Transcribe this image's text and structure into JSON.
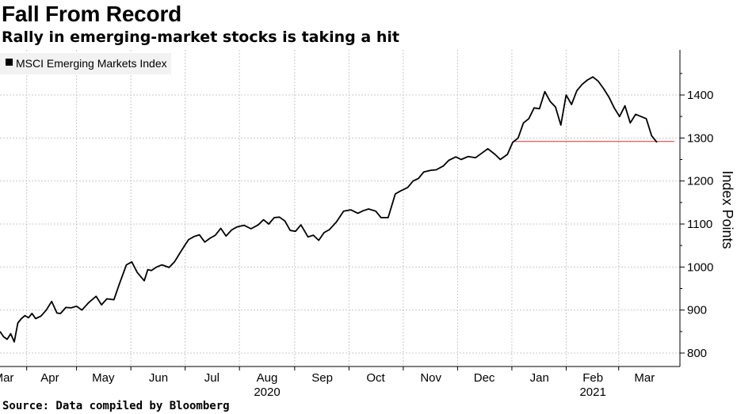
{
  "title": "Fall From Record",
  "subtitle": "Rally in emerging-market stocks is taking a hit",
  "source": "Source: Data compiled by Bloomberg",
  "colors": {
    "line": "#000000",
    "reference_line": "#e8484f",
    "grid": "#c8c8c8",
    "legend_bg": "#f2f2f2"
  },
  "chart_data": {
    "type": "line",
    "title": "Fall From Record",
    "subtitle": "Rally in emerging-market stocks is taking a hit",
    "ylabel": "Index Points",
    "xlabel": "",
    "ylim": [
      775,
      1500
    ],
    "yticks": [
      800,
      900,
      1000,
      1100,
      1200,
      1300,
      1400
    ],
    "yaxis_side": "right",
    "grid": true,
    "legend": {
      "position": "top-left",
      "entries": [
        "MSCI Emerging Markets Index"
      ]
    },
    "x_range": [
      "2020-03-19",
      "2021-03-31"
    ],
    "month_ticks": [
      {
        "label": "Mar",
        "date": "2020-03-21"
      },
      {
        "label": "Apr",
        "date": "2020-04-16"
      },
      {
        "label": "May",
        "date": "2020-05-16"
      },
      {
        "label": "Jun",
        "date": "2020-06-16"
      },
      {
        "label": "Jul",
        "date": "2020-07-16"
      },
      {
        "label": "Aug",
        "date": "2020-08-16"
      },
      {
        "label": "Sep",
        "date": "2020-09-16"
      },
      {
        "label": "Oct",
        "date": "2020-10-16"
      },
      {
        "label": "Nov",
        "date": "2020-11-16"
      },
      {
        "label": "Dec",
        "date": "2020-12-16"
      },
      {
        "label": "Jan",
        "date": "2021-01-16"
      },
      {
        "label": "Feb",
        "date": "2021-02-15"
      },
      {
        "label": "Mar",
        "date": "2021-03-16"
      }
    ],
    "year_labels": [
      {
        "label": "2020",
        "date": "2020-08-16"
      },
      {
        "label": "2021",
        "date": "2021-02-15"
      }
    ],
    "reference_line": {
      "y": 1292,
      "from": "2021-01-01",
      "to": "2021-03-31"
    },
    "series": [
      {
        "name": "MSCI Emerging Markets Index",
        "x": [
          "2020-03-19",
          "2020-03-21",
          "2020-03-23",
          "2020-03-25",
          "2020-03-27",
          "2020-03-29",
          "2020-03-31",
          "2020-04-02",
          "2020-04-04",
          "2020-04-06",
          "2020-04-08",
          "2020-04-11",
          "2020-04-14",
          "2020-04-17",
          "2020-04-20",
          "2020-04-22",
          "2020-04-25",
          "2020-04-28",
          "2020-05-01",
          "2020-05-04",
          "2020-05-08",
          "2020-05-12",
          "2020-05-15",
          "2020-05-18",
          "2020-05-22",
          "2020-05-25",
          "2020-05-29",
          "2020-06-01",
          "2020-06-04",
          "2020-06-08",
          "2020-06-10",
          "2020-06-12",
          "2020-06-15",
          "2020-06-18",
          "2020-06-22",
          "2020-06-25",
          "2020-06-28",
          "2020-07-01",
          "2020-07-03",
          "2020-07-06",
          "2020-07-09",
          "2020-07-12",
          "2020-07-15",
          "2020-07-18",
          "2020-07-21",
          "2020-07-24",
          "2020-07-27",
          "2020-07-30",
          "2020-08-03",
          "2020-08-07",
          "2020-08-11",
          "2020-08-14",
          "2020-08-17",
          "2020-08-20",
          "2020-08-23",
          "2020-08-26",
          "2020-08-29",
          "2020-09-01",
          "2020-09-04",
          "2020-09-08",
          "2020-09-11",
          "2020-09-14",
          "2020-09-17",
          "2020-09-20",
          "2020-09-24",
          "2020-09-28",
          "2020-10-02",
          "2020-10-06",
          "2020-10-09",
          "2020-10-12",
          "2020-10-16",
          "2020-10-19",
          "2020-10-23",
          "2020-10-27",
          "2020-10-30",
          "2020-11-03",
          "2020-11-06",
          "2020-11-09",
          "2020-11-12",
          "2020-11-16",
          "2020-11-19",
          "2020-11-23",
          "2020-11-26",
          "2020-11-30",
          "2020-12-03",
          "2020-12-07",
          "2020-12-11",
          "2020-12-15",
          "2020-12-18",
          "2020-12-22",
          "2020-12-25",
          "2020-12-29",
          "2021-01-01",
          "2021-01-04",
          "2021-01-07",
          "2021-01-10",
          "2021-01-13",
          "2021-01-16",
          "2021-01-19",
          "2021-01-22",
          "2021-01-25",
          "2021-01-28",
          "2021-01-31",
          "2021-02-03",
          "2021-02-06",
          "2021-02-09",
          "2021-02-12",
          "2021-02-15",
          "2021-02-18",
          "2021-02-21",
          "2021-02-24",
          "2021-02-27",
          "2021-03-02",
          "2021-03-05",
          "2021-03-08",
          "2021-03-11",
          "2021-03-14",
          "2021-03-17",
          "2021-03-20",
          "2021-03-23"
        ],
        "values": [
          850,
          838,
          832,
          845,
          826,
          870,
          880,
          887,
          882,
          892,
          880,
          886,
          900,
          920,
          893,
          892,
          906,
          905,
          909,
          900,
          918,
          932,
          912,
          926,
          924,
          960,
          1005,
          1012,
          988,
          968,
          994,
          992,
          1000,
          1005,
          999,
          1012,
          1032,
          1052,
          1064,
          1071,
          1075,
          1058,
          1067,
          1074,
          1090,
          1072,
          1086,
          1093,
          1097,
          1089,
          1098,
          1110,
          1100,
          1115,
          1116,
          1107,
          1085,
          1083,
          1098,
          1070,
          1074,
          1062,
          1080,
          1087,
          1105,
          1130,
          1133,
          1125,
          1131,
          1135,
          1130,
          1115,
          1115,
          1170,
          1177,
          1185,
          1200,
          1206,
          1221,
          1225,
          1226,
          1235,
          1248,
          1256,
          1250,
          1257,
          1254,
          1266,
          1275,
          1262,
          1250,
          1262,
          1290,
          1300,
          1335,
          1345,
          1370,
          1368,
          1408,
          1385,
          1372,
          1330,
          1400,
          1378,
          1410,
          1425,
          1435,
          1442,
          1432,
          1415,
          1395,
          1370,
          1350,
          1375,
          1335,
          1355,
          1350,
          1345,
          1305,
          1290
        ]
      }
    ]
  }
}
